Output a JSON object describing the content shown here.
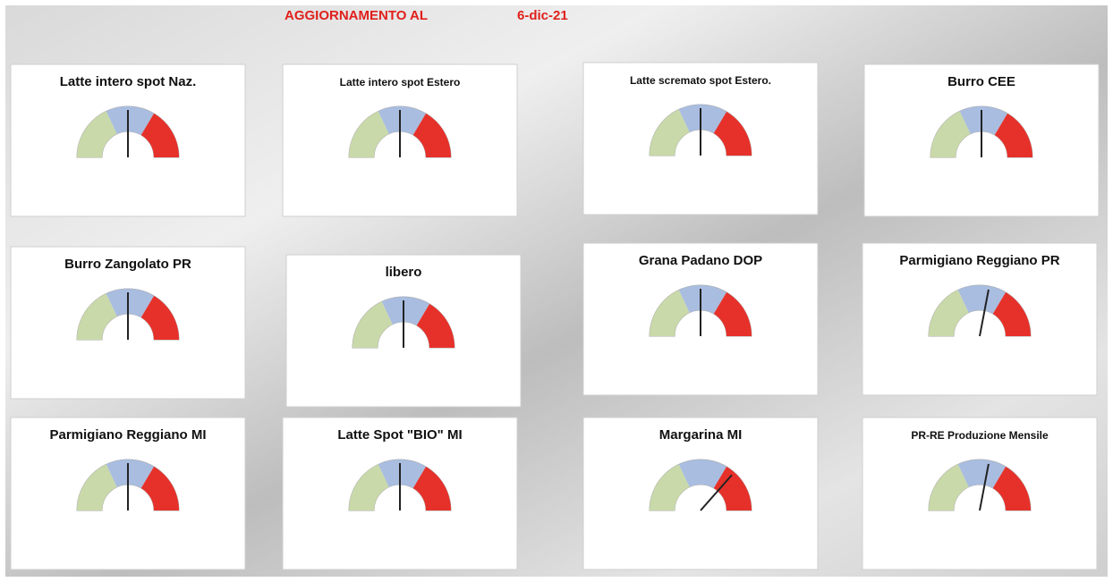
{
  "header": {
    "label": "AGGIORNAMENTO AL",
    "date": "6-dic-21"
  },
  "chart_data": [
    {
      "type": "gauge",
      "title": "Latte intero spot Naz.",
      "value": 50,
      "ylim": [
        0,
        100
      ],
      "bands": [
        {
          "color": "#c9d9a9",
          "value": 36
        },
        {
          "color": "#a9bde0",
          "value": 31
        },
        {
          "color": "#e6312a",
          "value": 33
        }
      ]
    },
    {
      "type": "gauge",
      "title": "Latte intero spot Estero",
      "value": 50,
      "ylim": [
        0,
        100
      ],
      "bands": [
        {
          "color": "#c9d9a9",
          "value": 36
        },
        {
          "color": "#a9bde0",
          "value": 31
        },
        {
          "color": "#e6312a",
          "value": 33
        }
      ]
    },
    {
      "type": "gauge",
      "title": "Latte scremato spot Estero.",
      "value": 50,
      "ylim": [
        0,
        100
      ],
      "bands": [
        {
          "color": "#c9d9a9",
          "value": 36
        },
        {
          "color": "#a9bde0",
          "value": 31
        },
        {
          "color": "#e6312a",
          "value": 33
        }
      ]
    },
    {
      "type": "gauge",
      "title": "Burro CEE",
      "value": 50,
      "ylim": [
        0,
        100
      ],
      "bands": [
        {
          "color": "#c9d9a9",
          "value": 36
        },
        {
          "color": "#a9bde0",
          "value": 31
        },
        {
          "color": "#e6312a",
          "value": 33
        }
      ]
    },
    {
      "type": "gauge",
      "title": "Burro Zangolato PR",
      "value": 50,
      "ylim": [
        0,
        100
      ],
      "bands": [
        {
          "color": "#c9d9a9",
          "value": 36
        },
        {
          "color": "#a9bde0",
          "value": 31
        },
        {
          "color": "#e6312a",
          "value": 33
        }
      ]
    },
    {
      "type": "gauge",
      "title": "libero",
      "value": 50,
      "ylim": [
        0,
        100
      ],
      "bands": [
        {
          "color": "#c9d9a9",
          "value": 36
        },
        {
          "color": "#a9bde0",
          "value": 31
        },
        {
          "color": "#e6312a",
          "value": 33
        }
      ]
    },
    {
      "type": "gauge",
      "title": "Grana Padano DOP",
      "value": 50,
      "ylim": [
        0,
        100
      ],
      "bands": [
        {
          "color": "#c9d9a9",
          "value": 36
        },
        {
          "color": "#a9bde0",
          "value": 31
        },
        {
          "color": "#e6312a",
          "value": 33
        }
      ]
    },
    {
      "type": "gauge",
      "title": "Parmigiano Reggiano PR",
      "value": 56,
      "ylim": [
        0,
        100
      ],
      "bands": [
        {
          "color": "#c9d9a9",
          "value": 36
        },
        {
          "color": "#a9bde0",
          "value": 31
        },
        {
          "color": "#e6312a",
          "value": 33
        }
      ]
    },
    {
      "type": "gauge",
      "title": "Parmigiano Reggiano MI",
      "value": 50,
      "ylim": [
        0,
        100
      ],
      "bands": [
        {
          "color": "#c9d9a9",
          "value": 36
        },
        {
          "color": "#a9bde0",
          "value": 31
        },
        {
          "color": "#e6312a",
          "value": 33
        }
      ]
    },
    {
      "type": "gauge",
      "title": "Latte Spot \"BIO\" MI",
      "value": 50,
      "ylim": [
        0,
        100
      ],
      "bands": [
        {
          "color": "#c9d9a9",
          "value": 36
        },
        {
          "color": "#a9bde0",
          "value": 31
        },
        {
          "color": "#e6312a",
          "value": 33
        }
      ]
    },
    {
      "type": "gauge",
      "title": "Margarina MI",
      "value": 73,
      "ylim": [
        0,
        100
      ],
      "bands": [
        {
          "color": "#c9d9a9",
          "value": 36
        },
        {
          "color": "#a9bde0",
          "value": 31
        },
        {
          "color": "#e6312a",
          "value": 33
        }
      ]
    },
    {
      "type": "gauge",
      "title": "PR-RE Produzione Mensile",
      "value": 56,
      "ylim": [
        0,
        100
      ],
      "bands": [
        {
          "color": "#c9d9a9",
          "value": 36
        },
        {
          "color": "#a9bde0",
          "value": 31
        },
        {
          "color": "#e6312a",
          "value": 33
        }
      ]
    }
  ]
}
